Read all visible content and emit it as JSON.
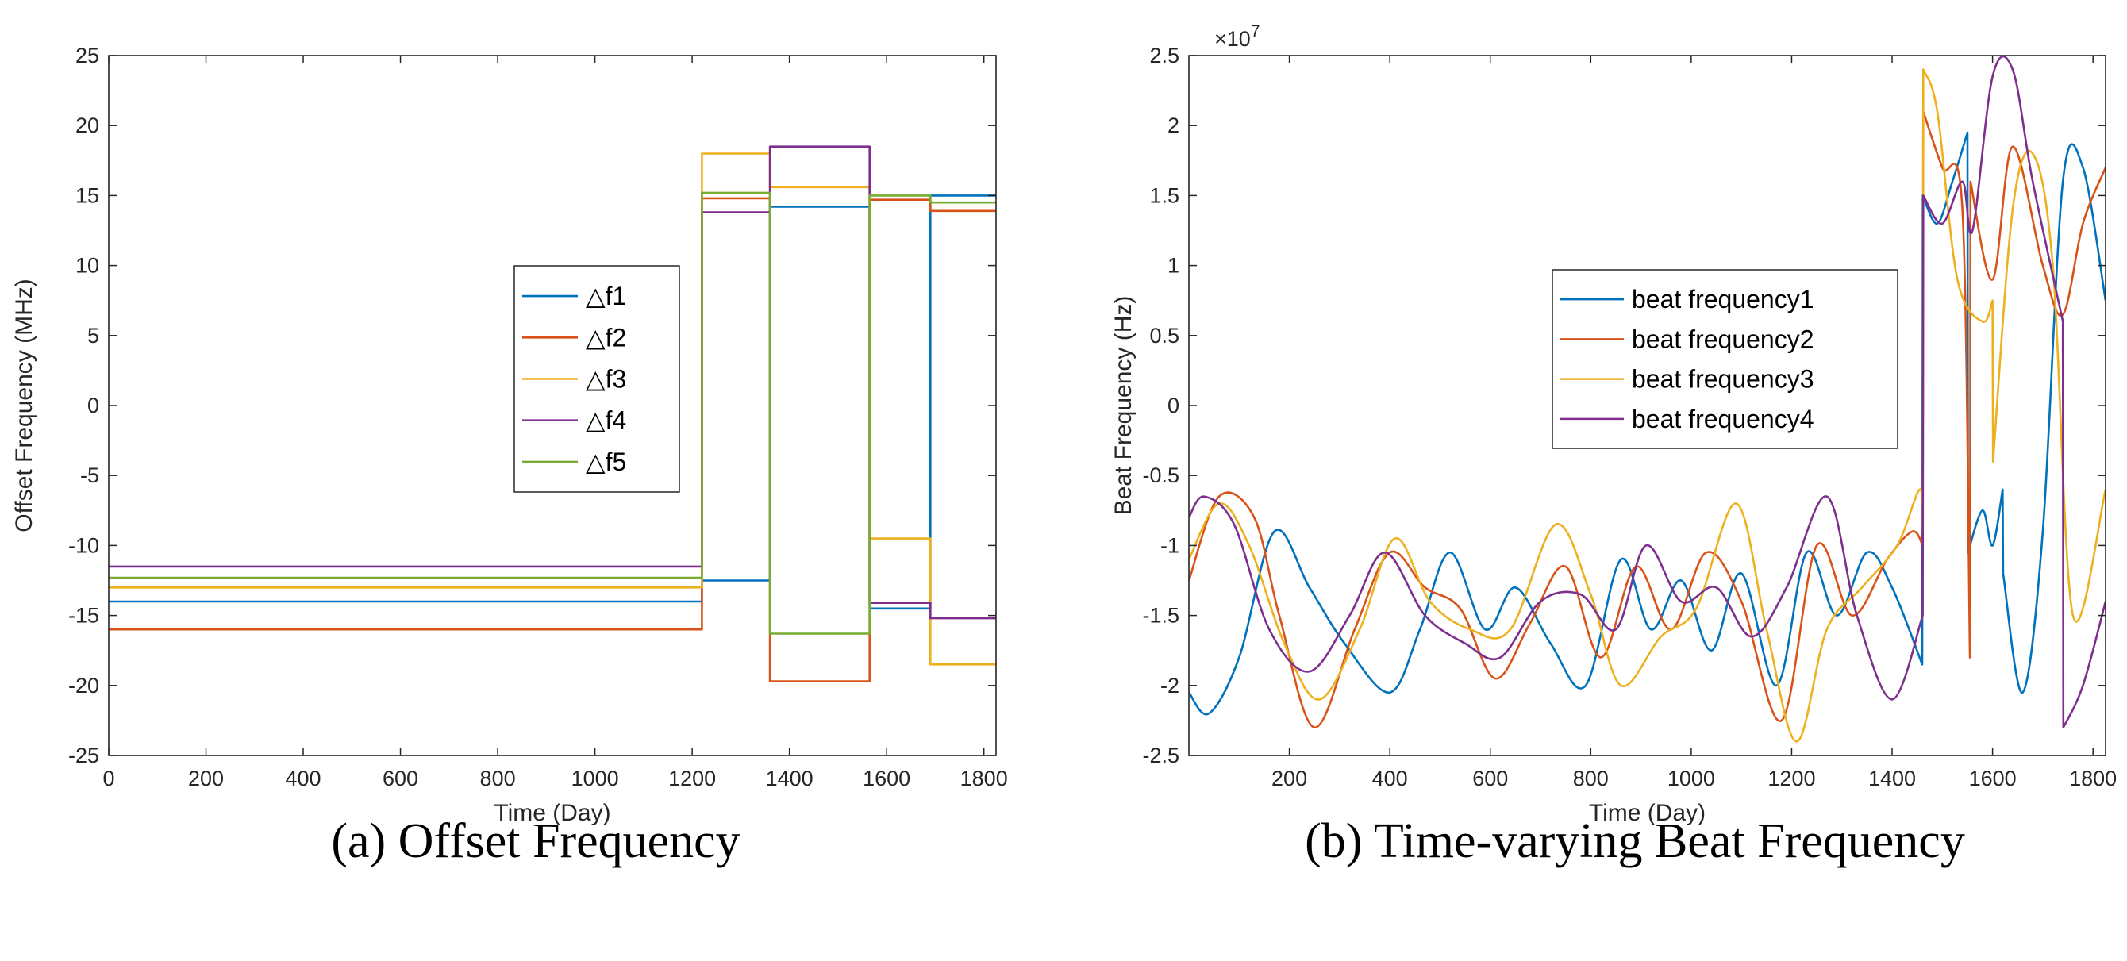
{
  "chart_data": [
    {
      "type": "line",
      "title": "",
      "caption": "(a) Offset Frequency",
      "xlabel": "Time (Day)",
      "ylabel": "Offset Frequency (MHz)",
      "xlim": [
        0,
        1825
      ],
      "ylim": [
        -25,
        25
      ],
      "xticks": [
        0,
        200,
        400,
        600,
        800,
        1000,
        1200,
        1400,
        1600,
        1800
      ],
      "yticks": [
        -25,
        -20,
        -15,
        -10,
        -5,
        0,
        5,
        10,
        15,
        20,
        25
      ],
      "legend_position": "center-right",
      "series": [
        {
          "name": "△f1",
          "color": "#0072BD",
          "step": true,
          "x": [
            0,
            1220,
            1360,
            1565,
            1690,
            1825
          ],
          "y": [
            -14,
            -12.5,
            14.2,
            -14.5,
            15,
            15
          ]
        },
        {
          "name": "△f2",
          "color": "#D95319",
          "step": true,
          "x": [
            0,
            1220,
            1360,
            1565,
            1690,
            1825
          ],
          "y": [
            -16,
            14.8,
            -19.7,
            14.7,
            13.9,
            13.9
          ]
        },
        {
          "name": "△f3",
          "color": "#EDB120",
          "step": true,
          "x": [
            0,
            1220,
            1360,
            1565,
            1690,
            1825
          ],
          "y": [
            -13,
            18,
            15.6,
            -9.5,
            -18.5,
            -18.5
          ]
        },
        {
          "name": "△f4",
          "color": "#7E2F8E",
          "step": true,
          "x": [
            0,
            1220,
            1360,
            1565,
            1690,
            1825
          ],
          "y": [
            -11.5,
            13.8,
            18.5,
            -14.1,
            -15.2,
            -15.2
          ]
        },
        {
          "name": "△f5",
          "color": "#77AC30",
          "step": true,
          "x": [
            0,
            1220,
            1360,
            1565,
            1690,
            1825
          ],
          "y": [
            -12.3,
            15.2,
            -16.3,
            15,
            14.5,
            14.5
          ]
        }
      ]
    },
    {
      "type": "line",
      "title": "",
      "caption": "(b) Time-varying Beat Frequency",
      "xlabel": "Time (Day)",
      "ylabel": "Beat Frequency (Hz)",
      "y_exponent": "×10",
      "y_exponent_power": "7",
      "xlim": [
        0,
        1825
      ],
      "ylim": [
        -2.5,
        2.5
      ],
      "xticks": [
        200,
        400,
        600,
        800,
        1000,
        1200,
        1400,
        1600,
        1800
      ],
      "yticks": [
        -2.5,
        -2,
        -1.5,
        -1,
        -0.5,
        0,
        0.5,
        1,
        1.5,
        2,
        2.5
      ],
      "legend_position": "center-right",
      "series": [
        {
          "name": "beat frequency1",
          "color": "#0072BD",
          "x": [
            0,
            40,
            100,
            170,
            240,
            310,
            400,
            460,
            520,
            590,
            650,
            720,
            790,
            860,
            920,
            980,
            1040,
            1100,
            1170,
            1230,
            1290,
            1350,
            1400,
            1460,
            1461,
            1490,
            1520,
            1550,
            1551,
            1580,
            1600,
            1620,
            1621,
            1660,
            1700,
            1740,
            1780,
            1825
          ],
          "y": [
            -2.05,
            -2.2,
            -1.8,
            -0.9,
            -1.3,
            -1.7,
            -2.05,
            -1.6,
            -1.05,
            -1.6,
            -1.3,
            -1.7,
            -2.0,
            -1.1,
            -1.6,
            -1.25,
            -1.75,
            -1.2,
            -2.0,
            -1.05,
            -1.5,
            -1.05,
            -1.3,
            -1.85,
            1.5,
            1.3,
            1.6,
            1.95,
            -1.05,
            -0.75,
            -1.0,
            -0.6,
            -1.2,
            -2.05,
            -0.9,
            1.6,
            1.7,
            0.75
          ]
        },
        {
          "name": "beat frequency2",
          "color": "#D95319",
          "x": [
            0,
            60,
            130,
            180,
            250,
            330,
            400,
            470,
            540,
            610,
            680,
            750,
            820,
            890,
            960,
            1030,
            1100,
            1180,
            1250,
            1320,
            1390,
            1440,
            1461,
            1462,
            1500,
            1540,
            1555,
            1556,
            1600,
            1640,
            1700,
            1740,
            1780,
            1825
          ],
          "y": [
            -1.25,
            -0.65,
            -0.8,
            -1.5,
            -2.3,
            -1.6,
            -1.05,
            -1.3,
            -1.45,
            -1.95,
            -1.55,
            -1.15,
            -1.8,
            -1.15,
            -1.6,
            -1.05,
            -1.4,
            -2.25,
            -1.0,
            -1.5,
            -1.1,
            -0.9,
            -1.0,
            2.1,
            1.7,
            1.4,
            -1.8,
            1.6,
            0.9,
            1.85,
            1.0,
            0.65,
            1.3,
            1.7
          ]
        },
        {
          "name": "beat frequency3",
          "color": "#EDB120",
          "x": [
            0,
            60,
            120,
            190,
            260,
            340,
            410,
            480,
            560,
            640,
            730,
            800,
            860,
            940,
            1010,
            1090,
            1150,
            1210,
            1270,
            1340,
            1410,
            1455,
            1461,
            1462,
            1490,
            1530,
            1580,
            1600,
            1601,
            1640,
            1680,
            1720,
            1760,
            1825
          ],
          "y": [
            -1.1,
            -0.7,
            -1.0,
            -1.7,
            -2.1,
            -1.6,
            -0.95,
            -1.4,
            -1.6,
            -1.6,
            -0.85,
            -1.35,
            -2.0,
            -1.65,
            -1.45,
            -0.7,
            -1.6,
            -2.4,
            -1.6,
            -1.3,
            -1.0,
            -0.6,
            -0.9,
            2.4,
            2.1,
            0.9,
            0.6,
            0.75,
            -0.4,
            1.4,
            1.8,
            1.0,
            -1.5,
            -0.6
          ]
        },
        {
          "name": "beat frequency4",
          "color": "#7E2F8E",
          "x": [
            0,
            30,
            90,
            160,
            240,
            320,
            390,
            470,
            550,
            620,
            700,
            780,
            850,
            910,
            980,
            1050,
            1120,
            1190,
            1270,
            1330,
            1400,
            1461,
            1462,
            1500,
            1540,
            1560,
            1600,
            1640,
            1680,
            1740,
            1741,
            1780,
            1825
          ],
          "y": [
            -0.8,
            -0.65,
            -0.85,
            -1.6,
            -1.9,
            -1.5,
            -1.05,
            -1.5,
            -1.7,
            -1.8,
            -1.4,
            -1.35,
            -1.6,
            -1.0,
            -1.4,
            -1.3,
            -1.65,
            -1.3,
            -0.65,
            -1.5,
            -2.1,
            -1.5,
            1.5,
            1.3,
            1.6,
            1.25,
            2.35,
            2.4,
            1.6,
            0.6,
            -2.3,
            -2.0,
            -1.4
          ]
        }
      ]
    }
  ]
}
